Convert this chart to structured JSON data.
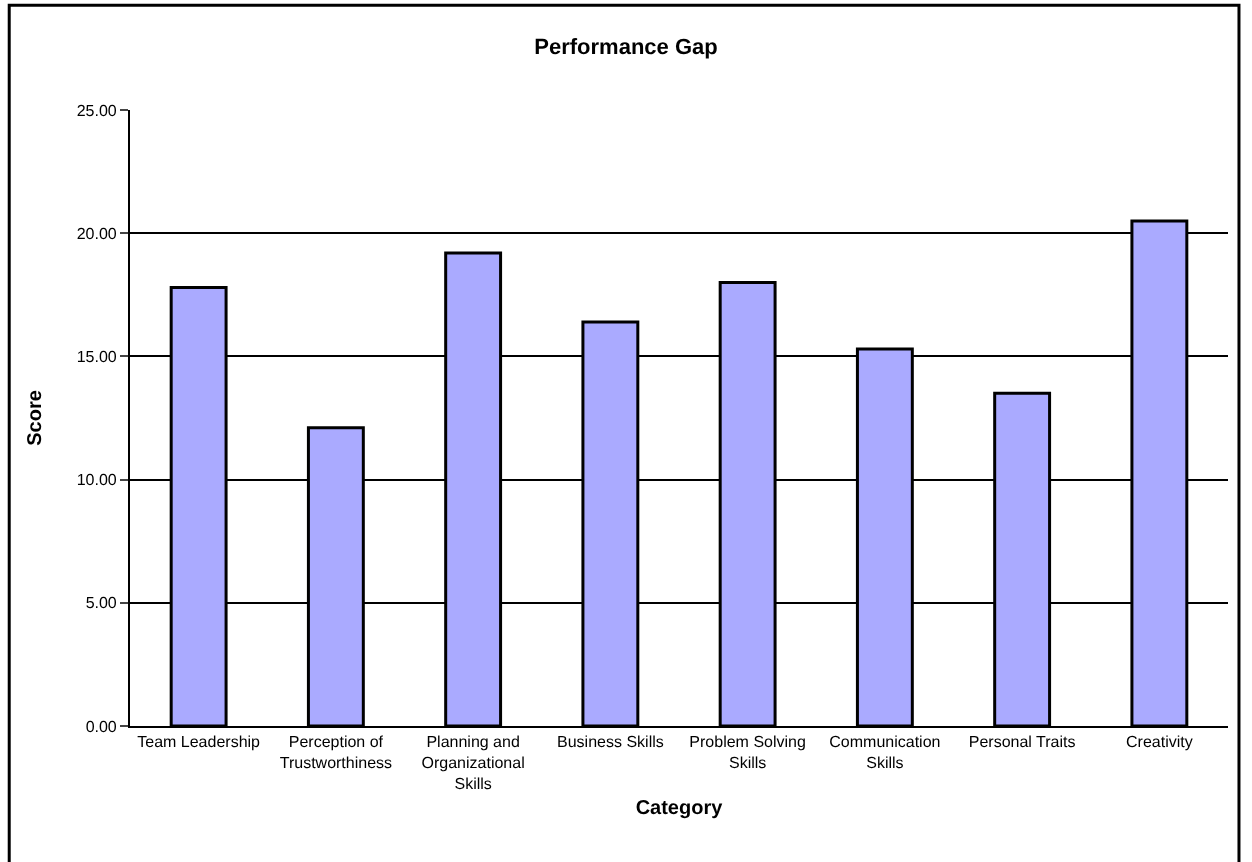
{
  "chart_data": {
    "type": "bar",
    "title": "Performance Gap",
    "xlabel": "Category",
    "ylabel": "Score",
    "categories": [
      "Team Leadership",
      "Perception of Trustworthiness",
      "Planning and Organizational Skills",
      "Business Skills",
      "Problem Solving Skills",
      "Communication Skills",
      "Personal Traits",
      "Creativity"
    ],
    "values": [
      17.8,
      12.1,
      19.2,
      16.4,
      18.0,
      15.3,
      13.5,
      20.5
    ],
    "color": "#aaaaff",
    "ylim": [
      0,
      25
    ],
    "yticks": [
      {
        "value": 0,
        "label": "0.00"
      },
      {
        "value": 5,
        "label": "5.00"
      },
      {
        "value": 10,
        "label": "10.00"
      },
      {
        "value": 15,
        "label": "15.00"
      },
      {
        "value": 20,
        "label": "20.00"
      },
      {
        "value": 25,
        "label": "25.00"
      }
    ],
    "grid": "y"
  }
}
